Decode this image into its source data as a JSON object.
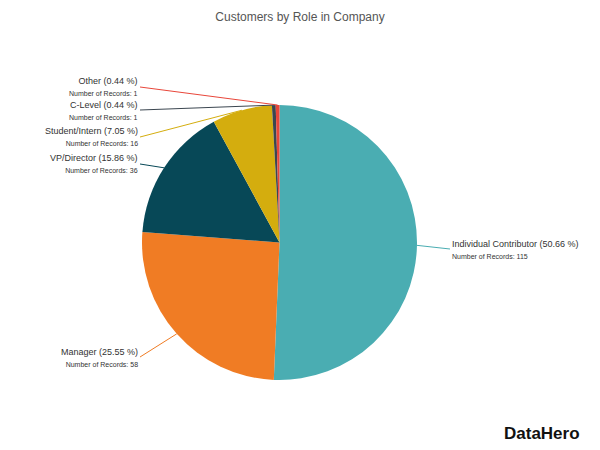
{
  "chart_data": {
    "type": "pie",
    "title": "Customers by Role in Company",
    "categories": [
      "Individual Contributor",
      "Manager",
      "VP/Director",
      "Student/Intern",
      "C-Level",
      "Other"
    ],
    "values": [
      115,
      58,
      36,
      16,
      1,
      1
    ],
    "value_labels": [
      "Number of Records: 115",
      "Number of Records: 58",
      "Number of Records: 36",
      "Number of Records: 16",
      "Number of Records: 1",
      "Number of Records: 1"
    ],
    "percentages": [
      50.66,
      25.55,
      15.86,
      7.05,
      0.44,
      0.44
    ],
    "percentage_labels": [
      "Individual Contributor (50.66 %)",
      "Manager (25.55 %)",
      "VP/Director (15.86 %)",
      "Student/Intern (7.05 %)",
      "C-Level (0.44 %)",
      "Other (0.44 %)"
    ],
    "colors": [
      "#4aadb2",
      "#f07c24",
      "#074857",
      "#d4ad0e",
      "#3b4650",
      "#e8463a"
    ],
    "annotations": [
      "DataHero"
    ]
  }
}
